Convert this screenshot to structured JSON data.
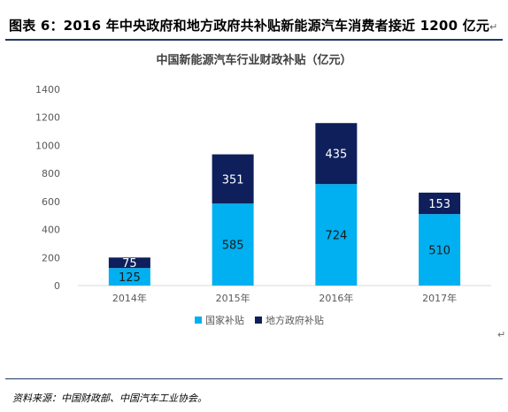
{
  "caption": "图表 6：2016 年中央政府和地方政府共补贴新能源汽车消费者接近 1200 亿元",
  "caption_return_mark": "↵",
  "after_chart_mark": "↵",
  "source": "资料来源：中国财政部、中国汽车工业协会。",
  "colors": {
    "national": "#00b0f0",
    "local": "#0e1f5b",
    "axis_text": "#595959",
    "rule": "#1f3864"
  },
  "chart_data": {
    "type": "bar",
    "stacked": true,
    "title": "中国新能源汽车行业财政补贴（亿元）",
    "categories": [
      "2014年",
      "2015年",
      "2016年",
      "2017年"
    ],
    "series": [
      {
        "name": "国家补贴",
        "values": [
          125,
          585,
          724,
          510
        ],
        "color": "#00b0f0"
      },
      {
        "name": "地方政府补贴",
        "values": [
          75,
          351,
          435,
          153
        ],
        "color": "#0e1f5b"
      }
    ],
    "ylim": [
      0,
      1400
    ],
    "yticks": [
      0,
      200,
      400,
      600,
      800,
      1000,
      1200,
      1400
    ],
    "grid": false,
    "legend": "bottom"
  }
}
